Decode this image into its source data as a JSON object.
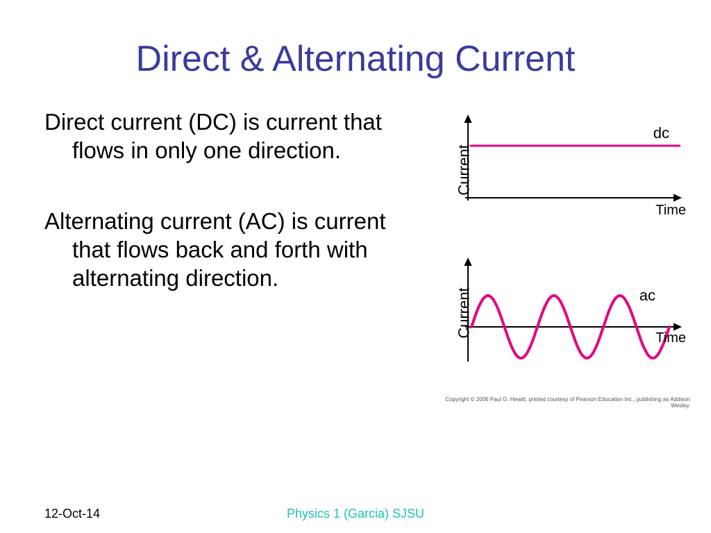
{
  "slide": {
    "title": "Direct & Alternating Current",
    "title_color": "#3a3a9e",
    "title_fontsize": 52,
    "body_fontsize": 33,
    "body_color": "#000000",
    "background_color": "#ffffff",
    "para1": "Direct current (DC) is current that flows in only one direction.",
    "para2": "Alternating current (AC) is current that flows back and forth with alternating direction."
  },
  "dc_chart": {
    "type": "line",
    "ylabel": "Current",
    "xlabel": "Time",
    "line_label": "dc",
    "axis_color": "#000000",
    "axis_width": 2,
    "line_color": "#e6007e",
    "line_width": 3,
    "x_range": [
      0,
      300
    ],
    "y_range": [
      0,
      140
    ],
    "x_axis_y": 130,
    "y_axis_x": 50,
    "dc_y": 55,
    "arrow_size": 8,
    "label_font": "Comic Sans MS",
    "label_fontsize": 22
  },
  "ac_chart": {
    "type": "sine",
    "ylabel": "Current",
    "xlabel": "Time",
    "line_label": "ac",
    "axis_color": "#000000",
    "axis_width": 2,
    "line_color": "#e6007e",
    "line_width": 4,
    "x_range": [
      0,
      300
    ],
    "y_range": [
      0,
      160
    ],
    "x_axis_y": 110,
    "y_axis_x": 50,
    "amplitude": 45,
    "cycles": 3,
    "wave_start_x": 55,
    "wave_end_x": 340,
    "arrow_size": 8,
    "label_font": "Comic Sans MS",
    "label_fontsize": 22
  },
  "copyright": "Copyright © 2006 Paul G. Hewitt, printed courtesy of Pearson Education Inc., publishing as Addison Wesley.",
  "footer": {
    "date": "12-Oct-14",
    "center": "Physics 1 (Garcia) SJSU",
    "center_color": "#1fc4b4",
    "date_color": "#000000",
    "fontsize": 18
  }
}
